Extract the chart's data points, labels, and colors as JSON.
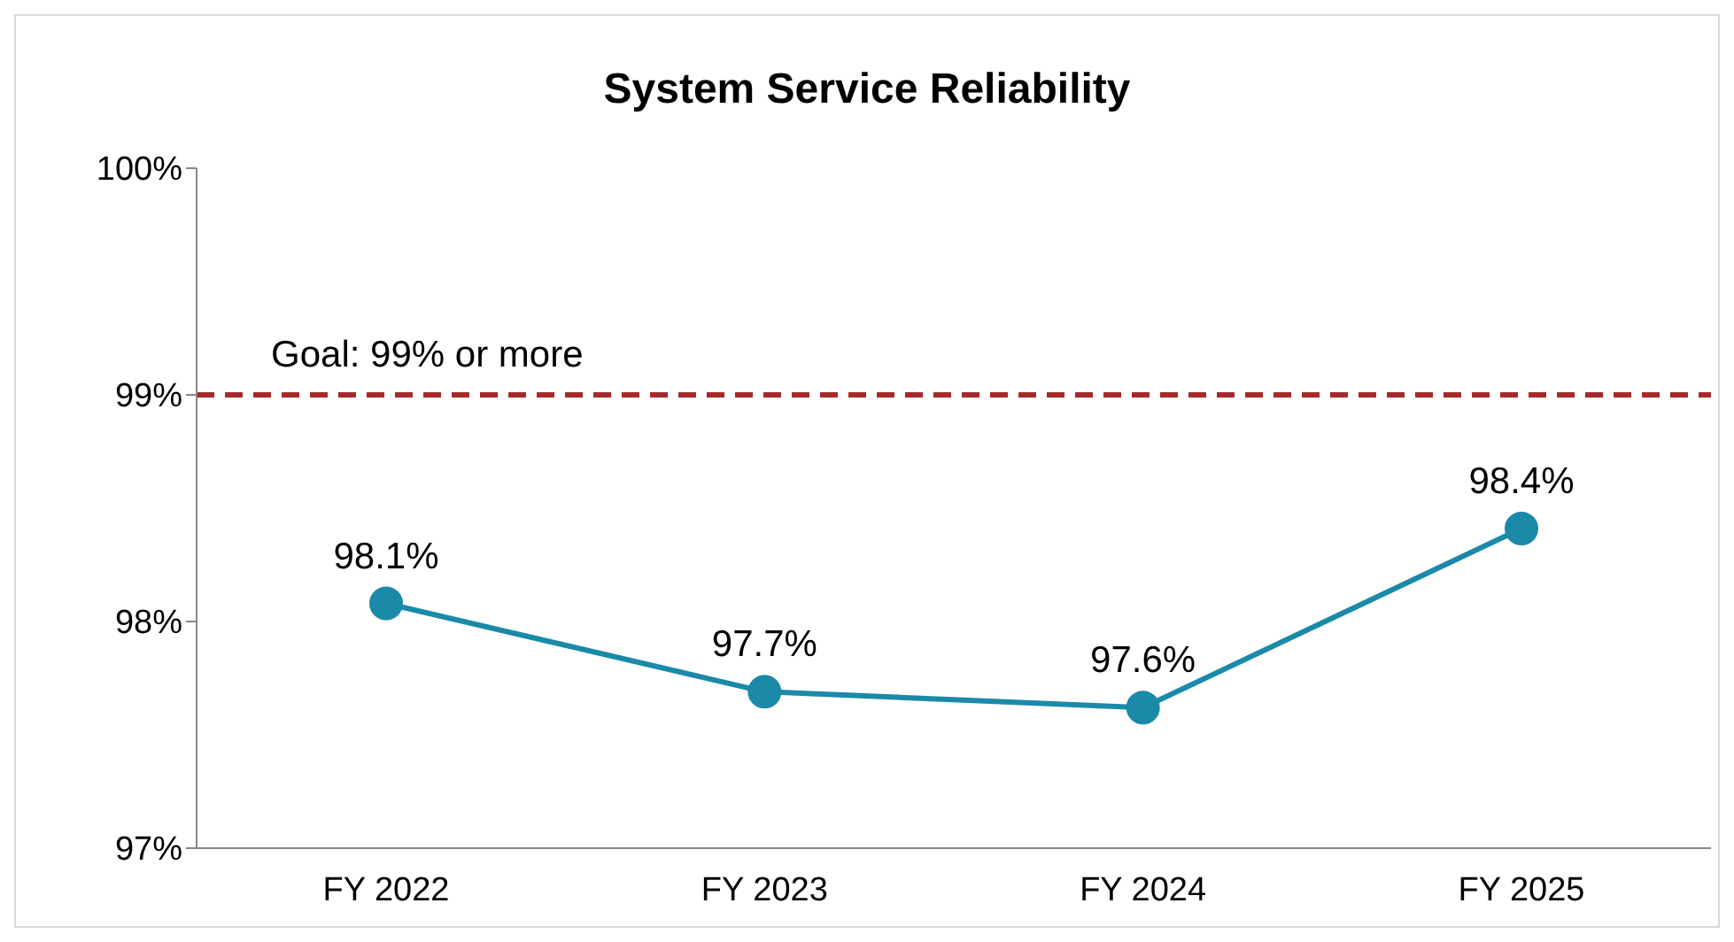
{
  "chart_data": {
    "type": "line",
    "title": "System Service Reliability",
    "categories": [
      "FY 2022",
      "FY 2023",
      "FY 2024",
      "FY 2025"
    ],
    "series": [
      {
        "color": "#1a8aa8",
        "values": [
          98.08,
          97.69,
          97.62,
          98.41
        ],
        "value_labels": [
          "98.1%",
          "97.7%",
          "97.6%",
          "98.4%"
        ]
      }
    ],
    "ylim": [
      97,
      100
    ],
    "yticks": [
      {
        "value": 97,
        "label": "97%"
      },
      {
        "value": 98,
        "label": "98%"
      },
      {
        "value": 99,
        "label": "99%"
      },
      {
        "value": 100,
        "label": "100%"
      }
    ],
    "ref_lines": [
      {
        "axis": "y",
        "value": 99,
        "label": "Goal: 99% or more",
        "color": "#a52a2a",
        "line_style": "dashed"
      }
    ],
    "marker": "circle",
    "line_style": "solid"
  }
}
